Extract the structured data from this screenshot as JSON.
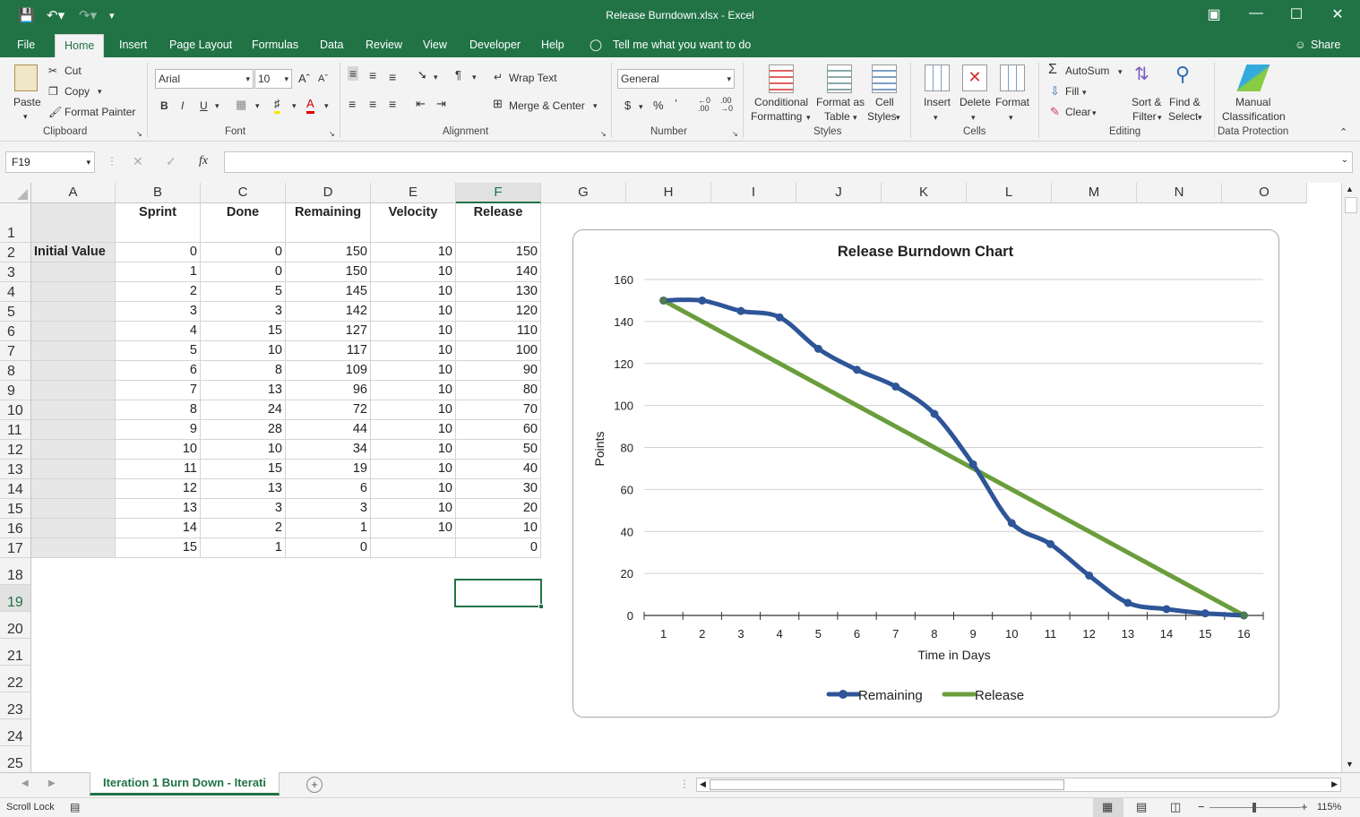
{
  "titlebar": {
    "title": "Release Burndown.xlsx  -  Excel"
  },
  "menu": {
    "tabs": [
      "File",
      "Home",
      "Insert",
      "Page Layout",
      "Formulas",
      "Data",
      "Review",
      "View",
      "Developer",
      "Help"
    ],
    "tell_me": "Tell me what you want to do",
    "share": "Share"
  },
  "ribbon": {
    "clipboard": {
      "paste": "Paste",
      "cut": "Cut",
      "copy": "Copy",
      "format_painter": "Format Painter",
      "label": "Clipboard"
    },
    "font": {
      "name": "Arial",
      "size": "10",
      "label": "Font"
    },
    "alignment": {
      "wrap_text": "Wrap Text",
      "merge_center": "Merge & Center",
      "label": "Alignment"
    },
    "number": {
      "format": "General",
      "label": "Number"
    },
    "styles": {
      "conditional": "Conditional",
      "formatting": "Formatting",
      "format_as": "Format as",
      "table": "Table",
      "cell": "Cell",
      "styles_word": "Styles",
      "label": "Styles"
    },
    "cells": {
      "insert": "Insert",
      "delete": "Delete",
      "format": "Format",
      "label": "Cells"
    },
    "editing": {
      "autosum": "AutoSum",
      "fill": "Fill",
      "clear": "Clear",
      "sort": "Sort &",
      "filter": "Filter",
      "find": "Find &",
      "select": "Select",
      "label": "Editing"
    },
    "data_protection": {
      "manual": "Manual",
      "classification": "Classification",
      "label": "Data Protection"
    }
  },
  "formula_bar": {
    "name_box": "F19",
    "fx": "fx",
    "content": ""
  },
  "columns": [
    "A",
    "B",
    "C",
    "D",
    "E",
    "F",
    "G",
    "H",
    "I",
    "J",
    "K",
    "L",
    "M",
    "N",
    "O"
  ],
  "rows": [
    "1",
    "2",
    "3",
    "4",
    "5",
    "6",
    "7",
    "8",
    "9",
    "10",
    "11",
    "12",
    "13",
    "14",
    "15",
    "16",
    "17",
    "18",
    "19",
    "20",
    "21",
    "22",
    "23",
    "24",
    "25"
  ],
  "sheet": {
    "headers": [
      "Sprint",
      "Done",
      "Remaining",
      "Velocity",
      "Release"
    ],
    "initial_value_label": "Initial Value",
    "data": [
      [
        "0",
        "0",
        "150",
        "10",
        "150"
      ],
      [
        "1",
        "0",
        "150",
        "10",
        "140"
      ],
      [
        "2",
        "5",
        "145",
        "10",
        "130"
      ],
      [
        "3",
        "3",
        "142",
        "10",
        "120"
      ],
      [
        "4",
        "15",
        "127",
        "10",
        "110"
      ],
      [
        "5",
        "10",
        "117",
        "10",
        "100"
      ],
      [
        "6",
        "8",
        "109",
        "10",
        "90"
      ],
      [
        "7",
        "13",
        "96",
        "10",
        "80"
      ],
      [
        "8",
        "24",
        "72",
        "10",
        "70"
      ],
      [
        "9",
        "28",
        "44",
        "10",
        "60"
      ],
      [
        "10",
        "10",
        "34",
        "10",
        "50"
      ],
      [
        "11",
        "15",
        "19",
        "10",
        "40"
      ],
      [
        "12",
        "13",
        "6",
        "10",
        "30"
      ],
      [
        "13",
        "3",
        "3",
        "10",
        "20"
      ],
      [
        "14",
        "2",
        "1",
        "10",
        "10"
      ],
      [
        "15",
        "1",
        "0",
        "",
        "0"
      ]
    ]
  },
  "chart_data": {
    "type": "line",
    "title": "Release Burndown Chart",
    "xlabel": "Time in Days",
    "ylabel": "Points",
    "x": [
      1,
      2,
      3,
      4,
      5,
      6,
      7,
      8,
      9,
      10,
      11,
      12,
      13,
      14,
      15,
      16
    ],
    "ylim": [
      0,
      160
    ],
    "yticks": [
      0,
      20,
      40,
      60,
      80,
      100,
      120,
      140,
      160
    ],
    "grid": true,
    "legend_position": "bottom",
    "series": [
      {
        "name": "Remaining",
        "color": "#2e5597",
        "values": [
          150,
          150,
          145,
          142,
          127,
          117,
          109,
          96,
          72,
          44,
          34,
          19,
          6,
          3,
          1,
          0
        ]
      },
      {
        "name": "Release",
        "color": "#6a9e3c",
        "values": [
          150,
          140,
          130,
          120,
          110,
          100,
          90,
          80,
          70,
          60,
          50,
          40,
          30,
          20,
          10,
          0
        ]
      }
    ]
  },
  "sheet_tab": "Iteration 1 Burn Down - Iterati",
  "status": {
    "scroll_lock": "Scroll Lock",
    "zoom": "115%"
  }
}
